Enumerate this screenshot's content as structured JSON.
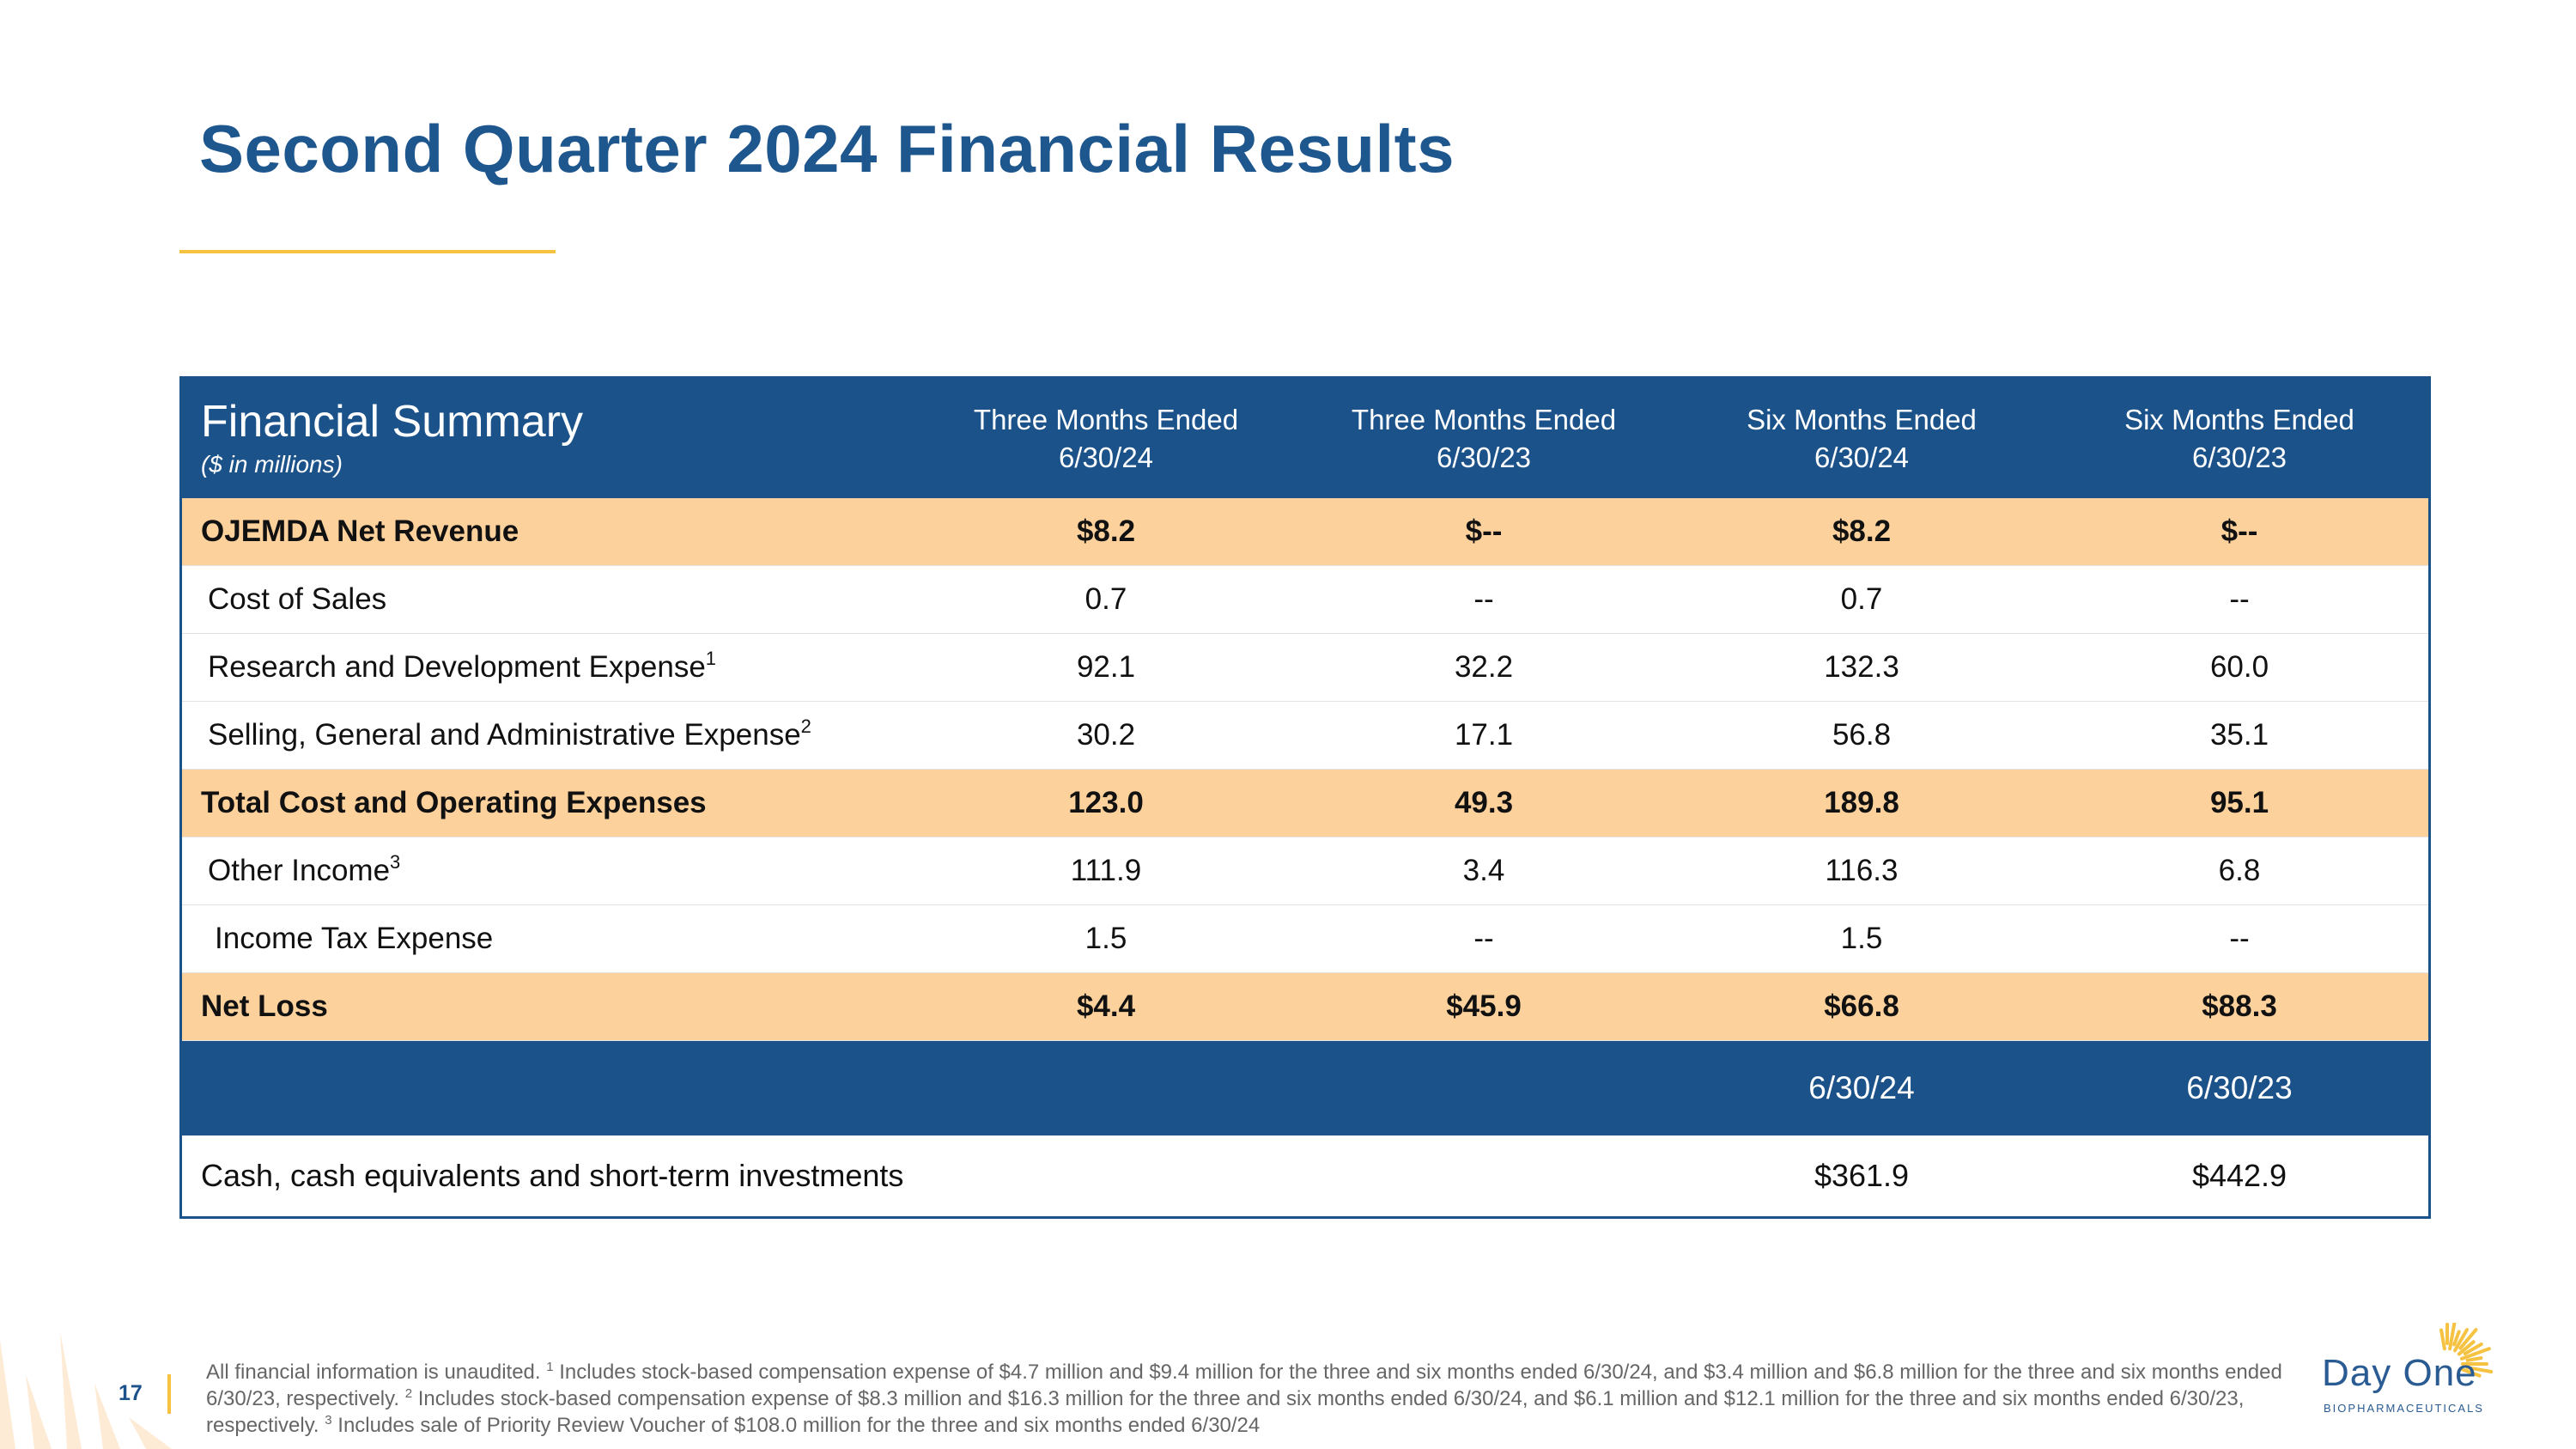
{
  "page": {
    "title": "Second Quarter 2024 Financial Results",
    "page_number": "17"
  },
  "colors": {
    "brand_blue": "#1b5289",
    "title_blue": "#1e568e",
    "highlight": "#fcd19c",
    "gold": "#f5c242"
  },
  "table": {
    "title": "Financial Summary",
    "unit": "($ in millions)",
    "columns": [
      {
        "line1": "Three Months Ended",
        "line2": "6/30/24"
      },
      {
        "line1": "Three Months Ended",
        "line2": "6/30/23"
      },
      {
        "line1": "Six Months Ended",
        "line2": "6/30/24"
      },
      {
        "line1": "Six Months Ended",
        "line2": "6/30/23"
      }
    ],
    "rows": [
      {
        "label": "OJEMDA Net Revenue",
        "sup": "",
        "values": [
          "$8.2",
          "$--",
          "$8.2",
          "$--"
        ]
      },
      {
        "label": "Cost of Sales",
        "sup": "",
        "values": [
          "0.7",
          "--",
          "0.7",
          "--"
        ]
      },
      {
        "label": "Research and Development Expense",
        "sup": "1",
        "values": [
          "92.1",
          "32.2",
          "132.3",
          "60.0"
        ]
      },
      {
        "label": "Selling, General and Administrative Expense",
        "sup": "2",
        "values": [
          "30.2",
          "17.1",
          "56.8",
          "35.1"
        ]
      },
      {
        "label": "Total Cost and Operating Expenses",
        "sup": "",
        "values": [
          "123.0",
          "49.3",
          "189.8",
          "95.1"
        ]
      },
      {
        "label": "Other Income",
        "sup": "3",
        "values": [
          "111.9",
          "3.4",
          "116.3",
          "6.8"
        ]
      },
      {
        "label": "Income Tax Expense",
        "sup": "",
        "values": [
          "1.5",
          "--",
          "1.5",
          "--"
        ]
      },
      {
        "label": "Net Loss",
        "sup": "",
        "values": [
          "$4.4",
          "$45.9",
          "$66.8",
          "$88.3"
        ]
      }
    ],
    "balance_header": [
      "6/30/24",
      "6/30/23"
    ],
    "cash": {
      "label": "Cash, cash equivalents and short-term investments",
      "values": [
        "$361.9",
        "$442.9"
      ]
    }
  },
  "footnote": {
    "intro": "All financial information is unaudited. ",
    "n1": "1",
    "t1": " Includes stock-based compensation expense of $4.7 million and $9.4 million for the three and six months ended 6/30/24, and $3.4 million and $6.8 million for the three and six months ended 6/30/23, respectively. ",
    "n2": "2",
    "t2": " Includes stock-based compensation expense of $8.3 million and $16.3 million for the three and six months ended 6/30/24, and $6.1 million and $12.1 million for the three and six months ended 6/30/23, respectively. ",
    "n3": "3",
    "t3": " Includes sale of Priority Review Voucher of $108.0 million for the three and six months ended 6/30/24"
  },
  "logo": {
    "name": "Day One",
    "tagline": "BIOPHARMACEUTICALS"
  }
}
